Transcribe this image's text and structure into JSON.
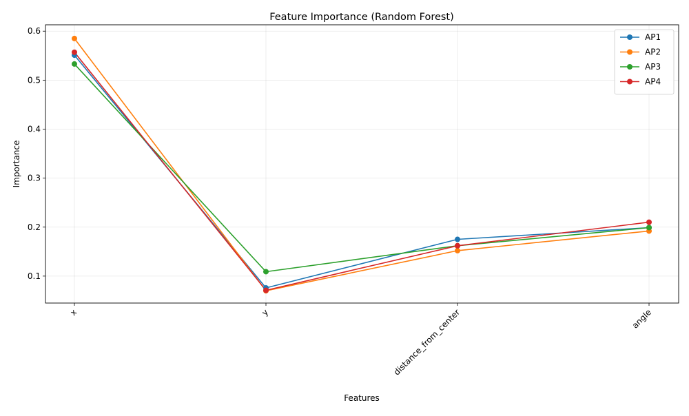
{
  "chart_data": {
    "type": "line",
    "title": "Feature Importance (Random Forest)",
    "xlabel": "Features",
    "ylabel": "Importance",
    "categories": [
      "x",
      "y",
      "distance_from_center",
      "angle"
    ],
    "ylim": [
      0.045,
      0.613
    ],
    "yticks": [
      0.1,
      0.2,
      0.3,
      0.4,
      0.5,
      0.6
    ],
    "ytick_labels": [
      "0.1",
      "0.2",
      "0.3",
      "0.4",
      "0.5",
      "0.6"
    ],
    "xtick_rotation": 45,
    "grid": true,
    "legend_position": "top-right",
    "marker": "circle",
    "series": [
      {
        "name": "AP1",
        "color": "#1f77b4",
        "values": [
          0.551,
          0.076,
          0.175,
          0.199
        ]
      },
      {
        "name": "AP2",
        "color": "#ff7f0e",
        "values": [
          0.585,
          0.07,
          0.152,
          0.192
        ]
      },
      {
        "name": "AP3",
        "color": "#2ca02c",
        "values": [
          0.533,
          0.109,
          0.162,
          0.199
        ]
      },
      {
        "name": "AP4",
        "color": "#d62728",
        "values": [
          0.557,
          0.071,
          0.162,
          0.21
        ]
      }
    ]
  }
}
